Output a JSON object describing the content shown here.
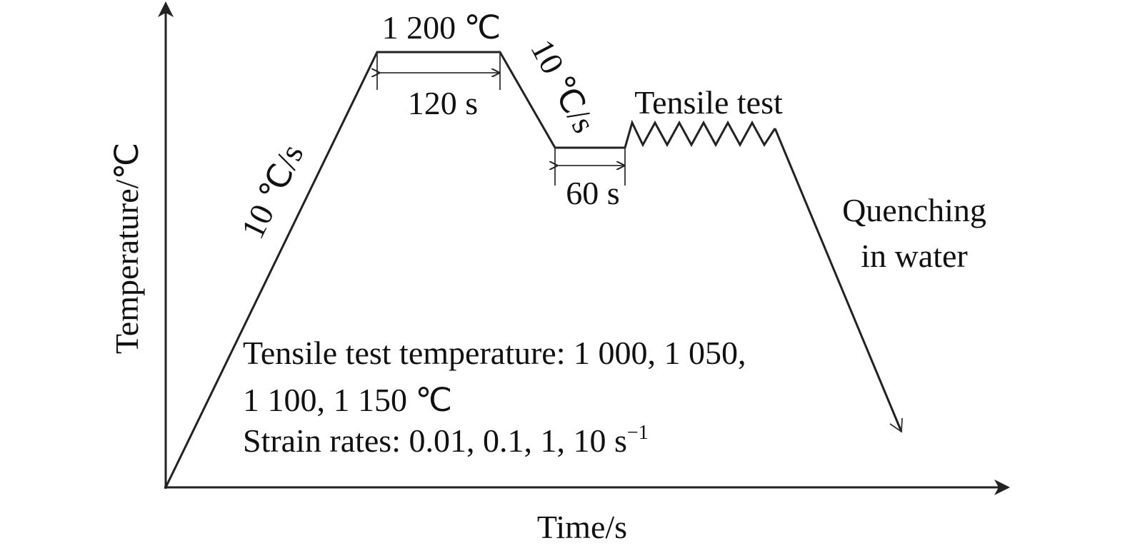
{
  "axes": {
    "y_label": "Temperature/℃",
    "x_label": "Time/s"
  },
  "stages": {
    "peak_temperature": "1 200 ℃",
    "hold_time_1": "120 s",
    "heating_rate": "10 ℃/s",
    "cooling_rate": "10 ℃/s",
    "hold_time_2": "60 s",
    "tensile_label": "Tensile test",
    "quench_label": [
      "Quenching",
      "in water"
    ]
  },
  "notes": {
    "temperature_line_1": "Tensile test temperature: 1 000, 1 050,",
    "temperature_line_2": "1 100, 1 150 ℃",
    "strain_rates": "Strain rates: 0.01, 0.1, 1, 10 s",
    "strain_rates_unit_exponent": "−1"
  }
}
